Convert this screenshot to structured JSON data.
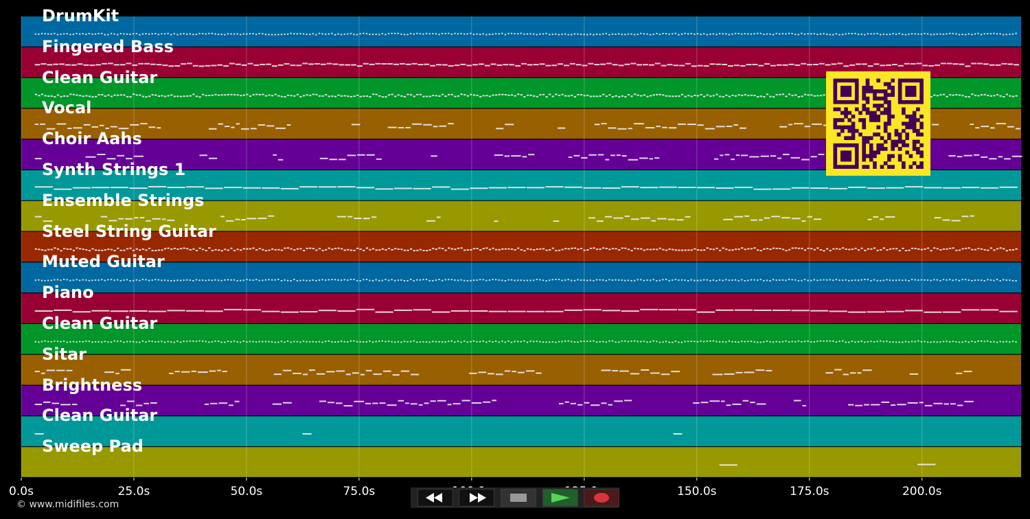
{
  "tracks": [
    {
      "name": "DrumKit",
      "color": "#0068a0",
      "kind": "drum"
    },
    {
      "name": "Fingered Bass",
      "color": "#980034",
      "kind": "line"
    },
    {
      "name": "Clean Guitar",
      "color": "#00962a",
      "kind": "dense"
    },
    {
      "name": "Vocal",
      "color": "#986000",
      "kind": "phrase"
    },
    {
      "name": "Choir Aahs",
      "color": "#640096",
      "kind": "phrase"
    },
    {
      "name": "Synth Strings 1",
      "color": "#009898",
      "kind": "long"
    },
    {
      "name": "Ensemble Strings",
      "color": "#989800",
      "kind": "phrase"
    },
    {
      "name": "Steel String Guitar",
      "color": "#982800",
      "kind": "dense"
    },
    {
      "name": "Muted Guitar",
      "color": "#0068a0",
      "kind": "drum"
    },
    {
      "name": "Piano",
      "color": "#980034",
      "kind": "long"
    },
    {
      "name": "Clean Guitar",
      "color": "#00962a",
      "kind": "drum"
    },
    {
      "name": "Sitar",
      "color": "#986000",
      "kind": "phrase"
    },
    {
      "name": "Brightness",
      "color": "#640096",
      "kind": "phrase"
    },
    {
      "name": "Clean Guitar",
      "color": "#009898",
      "kind": "sparse"
    },
    {
      "name": "Sweep Pad",
      "color": "#989800",
      "kind": "pad"
    }
  ],
  "time_axis": {
    "unit": "s",
    "max_seconds": 222,
    "ticks": [
      {
        "value": 0,
        "label": "0.0s"
      },
      {
        "value": 25,
        "label": "25.0s"
      },
      {
        "value": 50,
        "label": "50.0s"
      },
      {
        "value": 75,
        "label": "75.0s"
      },
      {
        "value": 100,
        "label": "100.0s"
      },
      {
        "value": 125,
        "label": "125.0s"
      },
      {
        "value": 150,
        "label": "150.0s"
      },
      {
        "value": 175,
        "label": "175.0s"
      },
      {
        "value": 200,
        "label": "200.0s"
      }
    ]
  },
  "copyright": "© www.midifiles.com",
  "transport": {
    "buttons": [
      {
        "name": "rewind-button",
        "icon": "rewind-icon"
      },
      {
        "name": "fast-forward-button",
        "icon": "fast-forward-icon"
      },
      {
        "name": "stop-button",
        "icon": "stop-icon"
      },
      {
        "name": "play-button",
        "icon": "play-icon"
      },
      {
        "name": "record-button",
        "icon": "record-icon"
      }
    ]
  },
  "qr_code": {
    "icon": "qr-code-icon",
    "fg": "#440154",
    "bg": "#fde725"
  }
}
